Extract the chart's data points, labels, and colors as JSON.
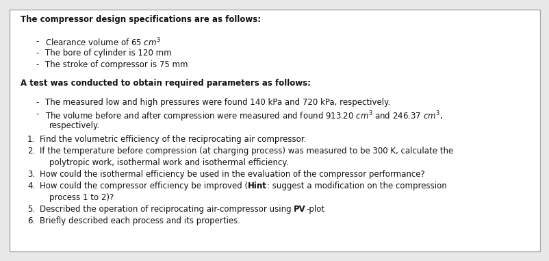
{
  "bg_color": "#e8e8e8",
  "box_color": "#ffffff",
  "border_color": "#aaaaaa",
  "font_size": 8.5,
  "bold_size": 8.5,
  "title1": "The compressor design specifications are as follows:",
  "bullet1": [
    "Clearance volume of 65 $cm^3$",
    "The bore of cylinder is 120 mm",
    "The stroke of compressor is 75 mm"
  ],
  "title2": "A test was conducted to obtain required parameters as follows:",
  "bullet2_line1": [
    "The measured low and high pressures were found 140 kPa and 720 kPa, respectively.",
    "The volume before and after compression were measured and found 913.20 $cm^3$ and 246.37 $cm^3$,"
  ],
  "bullet2_cont": "respectively.",
  "num1": "Find the volumetric efficiency of the reciprocating air compressor.",
  "num2_l1": "If the temperature before compression (at charging process) was measured to be 300 K, calculate the",
  "num2_l2": "polytropic work, isothermal work and isothermal efficiency.",
  "num3": "How could the isothermal efficiency be used in the evaluation of the compressor performance?",
  "num4_pre": "How could the compressor efficiency be improved (",
  "num4_hint": "Hint",
  "num4_post": ": suggest a modification on the compression",
  "num4_l2": "process 1 to 2)?",
  "num5_pre": "Described the operation of reciprocating air-compressor using ",
  "num5_bold": "PV",
  "num5_post": "-plot",
  "num6": "Briefly described each process and its properties."
}
